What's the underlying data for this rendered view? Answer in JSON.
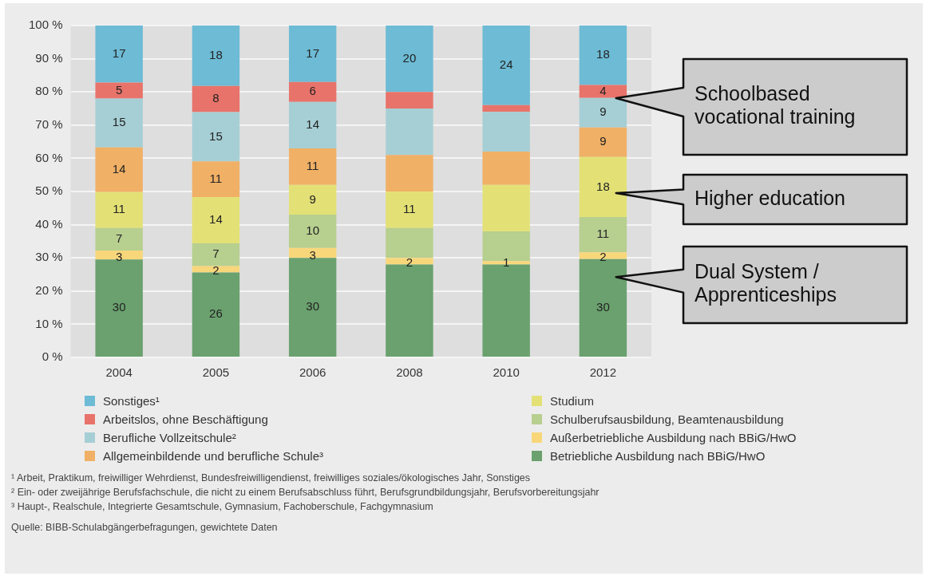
{
  "chart_data": {
    "type": "bar",
    "stacked": true,
    "categories": [
      "2004",
      "2005",
      "2006",
      "2008",
      "2010",
      "2012"
    ],
    "ylim": [
      0,
      100
    ],
    "yticks": [
      {
        "value": 0,
        "label": "0 %"
      },
      {
        "value": 10,
        "label": "10 %"
      },
      {
        "value": 20,
        "label": "20 %"
      },
      {
        "value": 30,
        "label": "30 %"
      },
      {
        "value": 40,
        "label": "40 %"
      },
      {
        "value": 50,
        "label": "50 %"
      },
      {
        "value": 60,
        "label": "60 %"
      },
      {
        "value": 70,
        "label": "70 %"
      },
      {
        "value": 80,
        "label": "80 %"
      },
      {
        "value": 90,
        "label": "90 %"
      },
      {
        "value": 100,
        "label": "100 %"
      }
    ],
    "grid": "y",
    "legend": "bottom",
    "series": [
      {
        "name": "Betriebliche Ausbildung nach BBiG/HwO",
        "color": "#6aa16e",
        "values": [
          29.5,
          25.6,
          30,
          28,
          28,
          29.6
        ],
        "value_labels": [
          "30",
          "26",
          "30",
          null,
          null,
          "30"
        ]
      },
      {
        "name": "Außerbetriebliche Ausbildung nach BBiG/HwO",
        "color": "#f8d77b",
        "values": [
          2.7,
          1.9,
          3,
          2,
          1,
          2.1
        ],
        "value_labels": [
          "3",
          "2",
          "3",
          "2",
          "1",
          "2"
        ]
      },
      {
        "name": "Schulberufsausbildung, Beamtenausbildung",
        "color": "#b7cf8f",
        "values": [
          6.8,
          6.9,
          10,
          9,
          9,
          10.6
        ],
        "value_labels": [
          "7",
          "7",
          "10",
          null,
          null,
          "11"
        ]
      },
      {
        "name": "Studium",
        "color": "#e3e176",
        "values": [
          10.8,
          13.9,
          9,
          11,
          14,
          18.1
        ],
        "value_labels": [
          "11",
          "14",
          "9",
          "11",
          null,
          "18"
        ]
      },
      {
        "name": "Allgemeinbildende und berufliche Schule³",
        "color": "#f0b066",
        "values": [
          13.5,
          10.8,
          11,
          11,
          10,
          8.9
        ],
        "value_labels": [
          "14",
          "11",
          "11",
          null,
          null,
          "9"
        ]
      },
      {
        "name": "Berufliche Vollzeitschule²",
        "color": "#a6cfd5",
        "values": [
          14.7,
          14.8,
          14,
          14,
          12,
          8.9
        ],
        "value_labels": [
          "15",
          "15",
          "14",
          null,
          null,
          "9"
        ]
      },
      {
        "name": "Arbeitslos, ohne Beschäftigung",
        "color": "#e8736a",
        "values": [
          4.8,
          7.9,
          6,
          5,
          2,
          3.9
        ],
        "value_labels": [
          "5",
          "8",
          "6",
          null,
          null,
          "4"
        ]
      },
      {
        "name": "Sonstiges¹",
        "color": "#6dbbd5",
        "values": [
          17.2,
          18.2,
          17,
          20,
          24,
          17.9
        ],
        "value_labels": [
          "17",
          "18",
          "17",
          "20",
          "24",
          "18"
        ]
      }
    ],
    "annotations": [
      "Schoolbased vocational training",
      "Higher education",
      "Dual System / Apprenticeships",
      "¹ Arbeit, Praktikum, freiwilliger Wehrdienst, Bundesfreiwilligendienst, freiwilliges soziales/ökologisches Jahr, Sonstiges",
      "² Ein- oder zweijährige Berufsfachschule, die nicht zu einem Berufsabschluss führt, Berufsgrundbildungsjahr, Berufsvorbereitungsjahr",
      "³ Haupt-, Realschule, Integrierte Gesamtschule, Gymnasium, Fachoberschule, Fachgymnasium",
      "Quelle: BIBB-Schulabgängerbefragungen, gewichtete Daten"
    ]
  }
}
